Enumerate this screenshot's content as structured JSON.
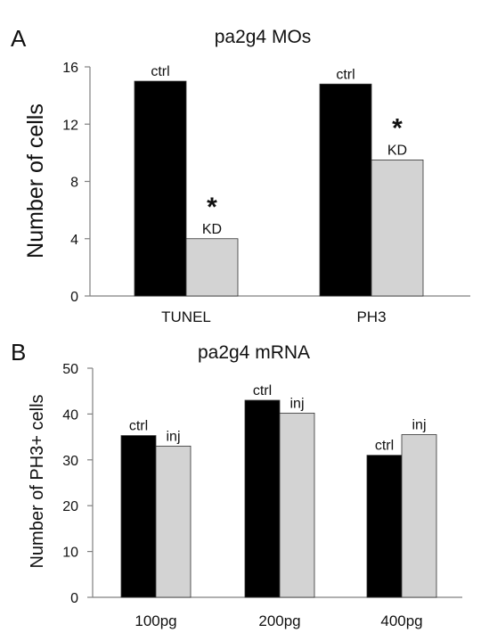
{
  "chart_data": [
    {
      "panel": "A",
      "type": "bar",
      "title": "pa2g4 MOs",
      "ylabel": "Number of cells",
      "xlabel": "",
      "ylim": [
        0,
        16
      ],
      "yticks": [
        0,
        4,
        8,
        12,
        16
      ],
      "categories": [
        "TUNEL",
        "PH3"
      ],
      "series": [
        {
          "values": [
            15,
            14.8
          ],
          "color": "#000000",
          "labels": [
            "ctrl",
            "ctrl"
          ]
        },
        {
          "values": [
            4,
            9.5
          ],
          "color": "#d3d3d3",
          "labels": [
            "KD",
            "KD"
          ],
          "marks": [
            "*",
            "*"
          ]
        }
      ],
      "grid": false,
      "legend": "none"
    },
    {
      "panel": "B",
      "type": "bar",
      "title": "pa2g4 mRNA",
      "ylabel": "Number of  PH3+ cells",
      "xlabel": "",
      "ylim": [
        0,
        50
      ],
      "yticks": [
        0,
        10,
        20,
        30,
        40,
        50
      ],
      "categories": [
        "100pg",
        "200pg",
        "400pg"
      ],
      "series": [
        {
          "values": [
            35.3,
            43.0,
            31.0
          ],
          "color": "#000000",
          "labels": [
            "ctrl",
            "ctrl",
            "ctrl"
          ]
        },
        {
          "values": [
            33.0,
            40.2,
            35.5
          ],
          "color": "#d3d3d3",
          "labels": [
            "inj",
            "inj",
            "inj"
          ]
        }
      ],
      "grid": false,
      "legend": "none"
    }
  ]
}
